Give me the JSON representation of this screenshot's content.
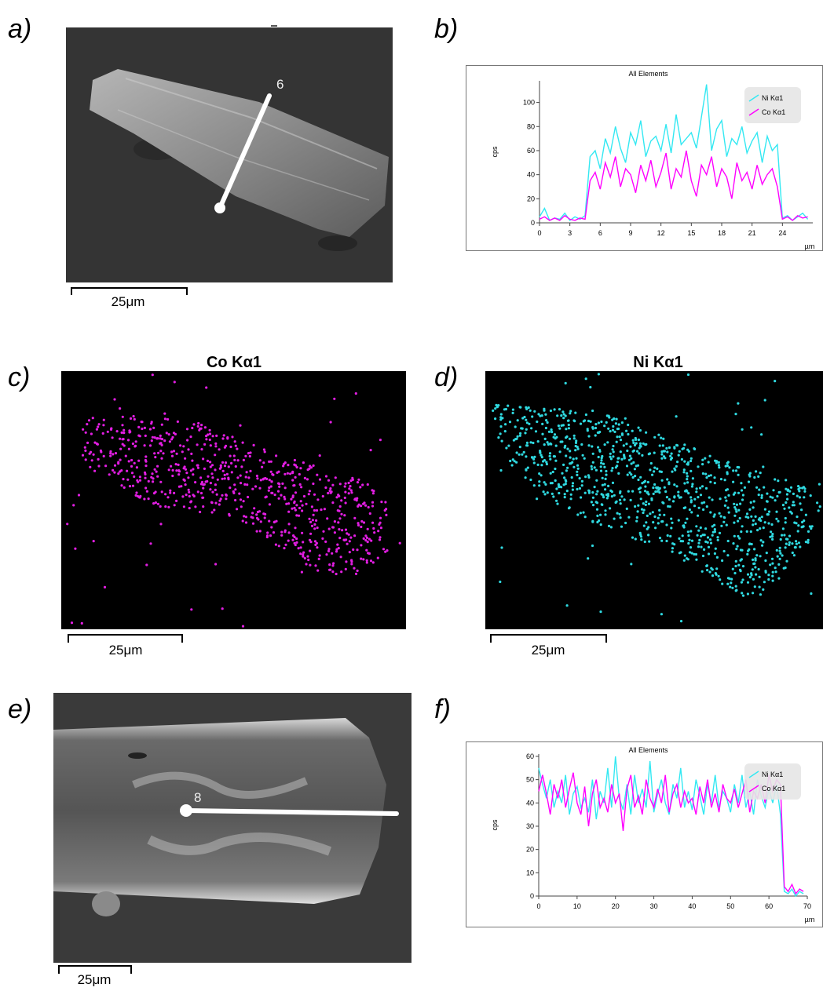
{
  "panel_labels": [
    "a)",
    "b)",
    "c)",
    "d)",
    "e)",
    "f)"
  ],
  "sem": [
    {
      "marker": "6",
      "scale_bar": "25μm"
    },
    {
      "marker": "8",
      "scale_bar": "25μm"
    }
  ],
  "maps": [
    {
      "title": "Co Kα1",
      "scale_bar": "25μm"
    },
    {
      "title": "Ni Kα1",
      "scale_bar": "25μm"
    }
  ],
  "chart_data": [
    {
      "type": "line",
      "title": "All Elements",
      "y_label": "cps",
      "x_label": "µm",
      "legend": "upper right",
      "xlim": [
        0,
        27
      ],
      "ylim": [
        0,
        118
      ],
      "xticks": [
        0,
        3,
        6,
        9,
        12,
        15,
        18,
        21,
        24
      ],
      "yticks": [
        0,
        20,
        40,
        60,
        80,
        100
      ],
      "x": [
        0,
        0.5,
        1,
        1.5,
        2,
        2.5,
        3,
        3.5,
        4,
        4.5,
        5,
        5.5,
        6,
        6.5,
        7,
        7.5,
        8,
        8.5,
        9,
        9.5,
        10,
        10.5,
        11,
        11.5,
        12,
        12.5,
        13,
        13.5,
        14,
        14.5,
        15,
        15.5,
        16,
        16.5,
        17,
        17.5,
        18,
        18.5,
        19,
        19.5,
        20,
        20.5,
        21,
        21.5,
        22,
        22.5,
        23,
        23.5,
        24,
        24.5,
        25,
        25.5,
        26,
        26.5
      ],
      "series": [
        {
          "name": "Ni Kα1",
          "color": "#33e8f2",
          "values": [
            5,
            12,
            2,
            4,
            3,
            8,
            2,
            5,
            3,
            6,
            55,
            60,
            45,
            70,
            58,
            80,
            62,
            50,
            75,
            65,
            85,
            55,
            68,
            72,
            60,
            82,
            58,
            90,
            65,
            70,
            75,
            62,
            88,
            115,
            60,
            78,
            85,
            55,
            70,
            65,
            80,
            58,
            68,
            75,
            50,
            72,
            60,
            65,
            4,
            6,
            2,
            5,
            8,
            3
          ]
        },
        {
          "name": "Co Kα1",
          "color": "#ff00ff",
          "values": [
            3,
            5,
            2,
            4,
            2,
            6,
            3,
            2,
            4,
            3,
            35,
            42,
            28,
            50,
            38,
            55,
            30,
            45,
            40,
            25,
            48,
            35,
            52,
            30,
            42,
            58,
            28,
            45,
            38,
            60,
            35,
            22,
            48,
            40,
            55,
            30,
            45,
            38,
            20,
            50,
            35,
            42,
            28,
            48,
            32,
            40,
            45,
            30,
            3,
            5,
            2,
            6,
            4,
            5
          ]
        }
      ]
    },
    {
      "type": "line",
      "title": "All Elements",
      "y_label": "cps",
      "x_label": "µm",
      "legend": "upper right",
      "xlim": [
        0,
        70
      ],
      "ylim": [
        0,
        61
      ],
      "xticks": [
        0,
        10,
        20,
        30,
        40,
        50,
        60,
        70
      ],
      "yticks": [
        0,
        10,
        20,
        30,
        40,
        50,
        60
      ],
      "x": [
        0,
        1,
        2,
        3,
        4,
        5,
        6,
        7,
        8,
        9,
        10,
        11,
        12,
        13,
        14,
        15,
        16,
        17,
        18,
        19,
        20,
        21,
        22,
        23,
        24,
        25,
        26,
        27,
        28,
        29,
        30,
        31,
        32,
        33,
        34,
        35,
        36,
        37,
        38,
        39,
        40,
        41,
        42,
        43,
        44,
        45,
        46,
        47,
        48,
        49,
        50,
        51,
        52,
        53,
        54,
        55,
        56,
        57,
        58,
        59,
        60,
        61,
        62,
        63,
        64,
        65,
        66,
        67,
        68,
        69
      ],
      "series": [
        {
          "name": "Ni Kα1",
          "color": "#33e8f2",
          "values": [
            55,
            48,
            42,
            50,
            38,
            45,
            40,
            52,
            35,
            44,
            47,
            38,
            42,
            36,
            50,
            33,
            45,
            40,
            55,
            38,
            60,
            42,
            37,
            48,
            35,
            52,
            40,
            46,
            38,
            58,
            36,
            44,
            50,
            40,
            35,
            48,
            42,
            55,
            38,
            45,
            37,
            50,
            43,
            35,
            48,
            40,
            52,
            38,
            45,
            42,
            36,
            48,
            40,
            52,
            38,
            45,
            35,
            50,
            43,
            38,
            46,
            40,
            48,
            35,
            2,
            1,
            3,
            0,
            2,
            1
          ]
        },
        {
          "name": "Co Kα1",
          "color": "#ff00ff",
          "values": [
            45,
            52,
            44,
            35,
            48,
            42,
            50,
            38,
            46,
            53,
            40,
            35,
            47,
            30,
            44,
            50,
            38,
            42,
            36,
            48,
            40,
            44,
            28,
            46,
            52,
            38,
            43,
            35,
            50,
            42,
            38,
            46,
            40,
            52,
            36,
            44,
            48,
            38,
            45,
            40,
            42,
            35,
            47,
            40,
            50,
            38,
            44,
            36,
            48,
            42,
            40,
            46,
            38,
            44,
            50,
            36,
            45,
            42,
            48,
            40,
            52,
            45,
            50,
            48,
            4,
            2,
            5,
            1,
            3,
            2
          ]
        }
      ]
    }
  ]
}
